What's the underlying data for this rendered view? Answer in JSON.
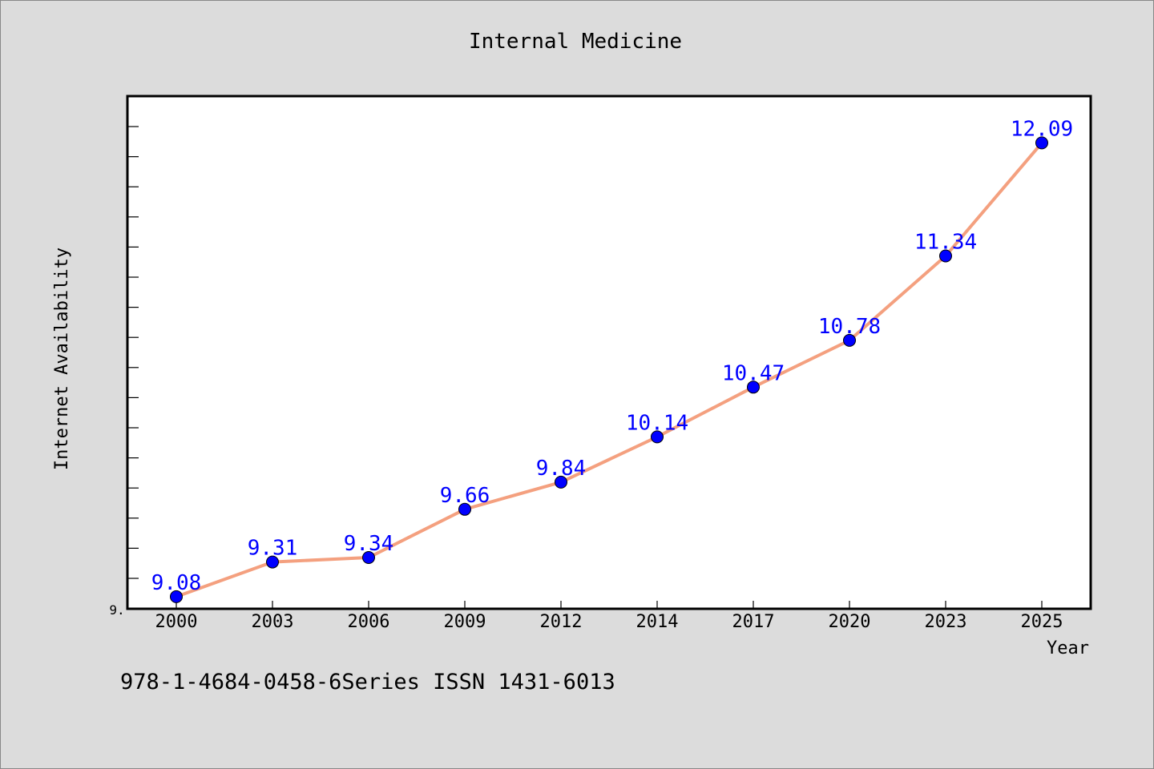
{
  "chart_data": {
    "type": "line",
    "title": "Internal Medicine",
    "xlabel": "Year",
    "ylabel": "Internet Availability",
    "categories": [
      "2000",
      "2003",
      "2006",
      "2009",
      "2012",
      "2014",
      "2017",
      "2020",
      "2023",
      "2025"
    ],
    "series": [
      {
        "values": [
          9.08,
          9.31,
          9.34,
          9.66,
          9.84,
          10.14,
          10.47,
          10.78,
          11.34,
          12.09
        ]
      }
    ],
    "ylim": [
      9.0,
      12.4
    ],
    "y_tick_label": "9.",
    "grid": false,
    "legend": "none",
    "data_labels": true,
    "colors": {
      "line": "#f4a07f",
      "marker": "#0000ff",
      "label": "#0000ff",
      "background": "#dcdcdc",
      "plot_background": "#ffffff"
    }
  },
  "footer": {
    "text": "978-1-4684-0458-6Series ISSN 1431-6013"
  }
}
